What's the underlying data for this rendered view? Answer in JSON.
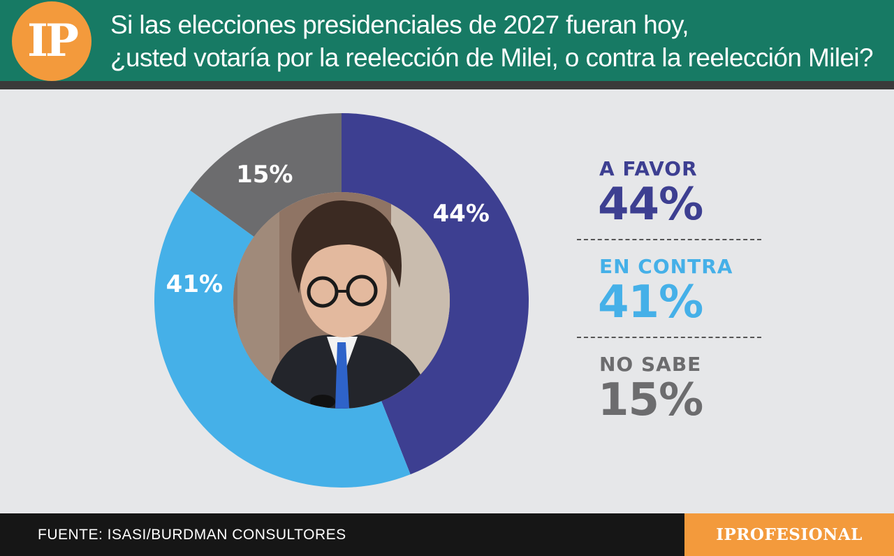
{
  "header": {
    "logo_text": "IP",
    "question_line1": "Si las elecciones presidenciales de 2027 fueran hoy,",
    "question_line2": "¿usted votaría por la reelección de Milei, o contra la reelección Milei?"
  },
  "chart_data": {
    "type": "pie",
    "title": "Si las elecciones presidenciales de 2027 fueran hoy, ¿usted votaría por la reelección de Milei, o contra la reelección Milei?",
    "categories": [
      "A FAVOR",
      "EN CONTRA",
      "NO SABE"
    ],
    "values": [
      44,
      41,
      15
    ],
    "data_labels": [
      "44%",
      "41%",
      "15%"
    ],
    "colors": [
      "#3d3f91",
      "#45b0e8",
      "#6c6c6e"
    ],
    "legend": "right"
  },
  "legend": [
    {
      "label": "A FAVOR",
      "value": "44%",
      "color": "#3d3f91"
    },
    {
      "label": "EN CONTRA",
      "value": "41%",
      "color": "#45b0e8"
    },
    {
      "label": "NO SABE",
      "value": "15%",
      "color": "#6c6c6e"
    }
  ],
  "footer": {
    "source": "FUENTE: ISASI/BURDMAN CONSULTORES",
    "brand": "IPROFESIONAL"
  }
}
